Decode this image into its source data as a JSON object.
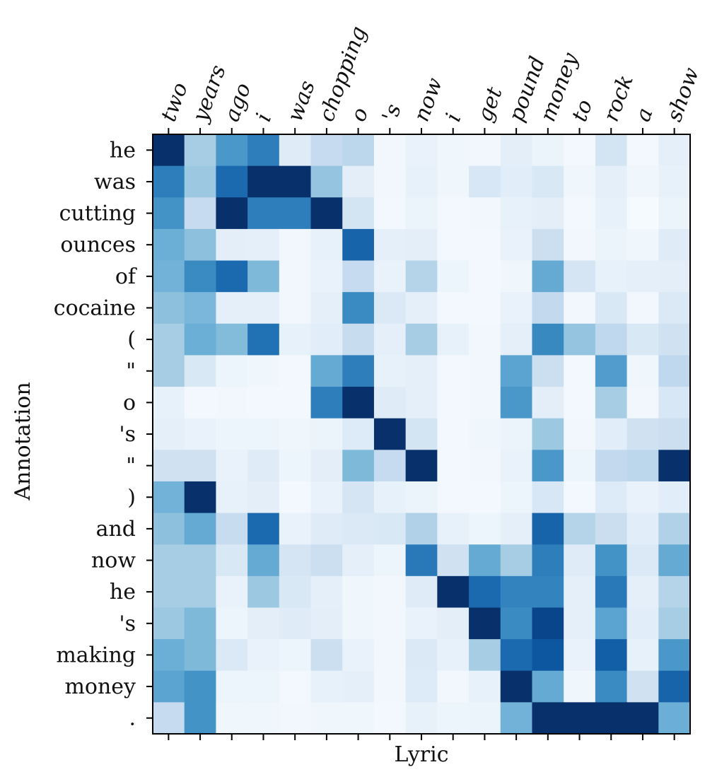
{
  "chart_data": {
    "type": "heatmap",
    "xlabel": "Lyric",
    "ylabel": "Annotation",
    "x_categories": [
      "two",
      "years",
      "ago",
      "i",
      "was",
      "chopping",
      "o",
      "'s",
      "now",
      "i",
      "get",
      "pound",
      "money",
      "to",
      "rock",
      "a",
      "show"
    ],
    "y_categories": [
      "he",
      "was",
      "cutting",
      "ounces",
      "of",
      "cocaine",
      "(",
      "\"",
      "o",
      "'s",
      "\"",
      ")",
      "and",
      "now",
      "he",
      "'s",
      "making",
      "money",
      "."
    ],
    "colormap": "Blues",
    "vmin": 0,
    "vmax": 1,
    "values": [
      [
        1.0,
        0.35,
        0.6,
        0.7,
        0.12,
        0.25,
        0.28,
        0.03,
        0.07,
        0.04,
        0.03,
        0.1,
        0.06,
        0.02,
        0.18,
        0.02,
        0.09
      ],
      [
        0.7,
        0.38,
        0.78,
        1.0,
        1.0,
        0.4,
        0.1,
        0.03,
        0.08,
        0.04,
        0.16,
        0.11,
        0.15,
        0.04,
        0.09,
        0.04,
        0.08
      ],
      [
        0.62,
        0.25,
        1.0,
        0.7,
        0.7,
        1.0,
        0.18,
        0.02,
        0.06,
        0.02,
        0.03,
        0.08,
        0.1,
        0.02,
        0.08,
        0.01,
        0.06
      ],
      [
        0.5,
        0.42,
        0.1,
        0.09,
        0.03,
        0.08,
        0.8,
        0.09,
        0.1,
        0.02,
        0.02,
        0.07,
        0.22,
        0.03,
        0.06,
        0.04,
        0.12
      ],
      [
        0.48,
        0.65,
        0.78,
        0.45,
        0.03,
        0.07,
        0.25,
        0.07,
        0.3,
        0.05,
        0.02,
        0.04,
        0.52,
        0.17,
        0.08,
        0.09,
        0.1
      ],
      [
        0.42,
        0.46,
        0.09,
        0.09,
        0.03,
        0.09,
        0.65,
        0.14,
        0.09,
        0.02,
        0.02,
        0.07,
        0.26,
        0.03,
        0.15,
        0.03,
        0.14
      ],
      [
        0.35,
        0.5,
        0.44,
        0.75,
        0.08,
        0.11,
        0.24,
        0.09,
        0.35,
        0.08,
        0.03,
        0.09,
        0.66,
        0.4,
        0.27,
        0.15,
        0.2
      ],
      [
        0.35,
        0.15,
        0.05,
        0.04,
        0.02,
        0.52,
        0.7,
        0.08,
        0.09,
        0.02,
        0.03,
        0.55,
        0.22,
        0.02,
        0.58,
        0.04,
        0.27
      ],
      [
        0.08,
        0.02,
        0.03,
        0.02,
        0.02,
        0.7,
        1.0,
        0.12,
        0.09,
        0.02,
        0.03,
        0.6,
        0.1,
        0.02,
        0.35,
        0.03,
        0.16
      ],
      [
        0.09,
        0.07,
        0.05,
        0.05,
        0.04,
        0.06,
        0.13,
        1.0,
        0.18,
        0.02,
        0.04,
        0.06,
        0.38,
        0.03,
        0.11,
        0.2,
        0.22
      ],
      [
        0.2,
        0.2,
        0.07,
        0.12,
        0.05,
        0.1,
        0.45,
        0.25,
        1.0,
        0.02,
        0.03,
        0.07,
        0.6,
        0.05,
        0.26,
        0.28,
        1.0
      ],
      [
        0.48,
        1.0,
        0.08,
        0.1,
        0.02,
        0.07,
        0.17,
        0.08,
        0.06,
        0.02,
        0.02,
        0.05,
        0.16,
        0.02,
        0.13,
        0.07,
        0.11
      ],
      [
        0.42,
        0.52,
        0.24,
        0.78,
        0.07,
        0.12,
        0.14,
        0.15,
        0.32,
        0.08,
        0.05,
        0.09,
        0.8,
        0.3,
        0.23,
        0.11,
        0.32
      ],
      [
        0.35,
        0.35,
        0.15,
        0.52,
        0.17,
        0.22,
        0.09,
        0.05,
        0.72,
        0.2,
        0.52,
        0.35,
        0.7,
        0.12,
        0.62,
        0.14,
        0.52
      ],
      [
        0.35,
        0.35,
        0.07,
        0.38,
        0.15,
        0.09,
        0.04,
        0.03,
        0.12,
        1.0,
        0.78,
        0.68,
        0.68,
        0.09,
        0.72,
        0.09,
        0.3
      ],
      [
        0.38,
        0.45,
        0.05,
        0.1,
        0.12,
        0.1,
        0.04,
        0.03,
        0.07,
        0.1,
        1.0,
        0.65,
        0.92,
        0.09,
        0.55,
        0.11,
        0.35
      ],
      [
        0.5,
        0.45,
        0.14,
        0.07,
        0.05,
        0.22,
        0.07,
        0.03,
        0.14,
        0.08,
        0.35,
        0.78,
        0.85,
        0.07,
        0.82,
        0.08,
        0.6
      ],
      [
        0.55,
        0.62,
        0.05,
        0.05,
        0.02,
        0.08,
        0.09,
        0.03,
        0.13,
        0.03,
        0.08,
        1.0,
        0.52,
        0.04,
        0.65,
        0.2,
        0.8
      ],
      [
        0.25,
        0.62,
        0.04,
        0.04,
        0.03,
        0.04,
        0.04,
        0.02,
        0.08,
        0.05,
        0.06,
        0.48,
        1.0,
        1.0,
        1.0,
        1.0,
        0.5
      ]
    ]
  }
}
